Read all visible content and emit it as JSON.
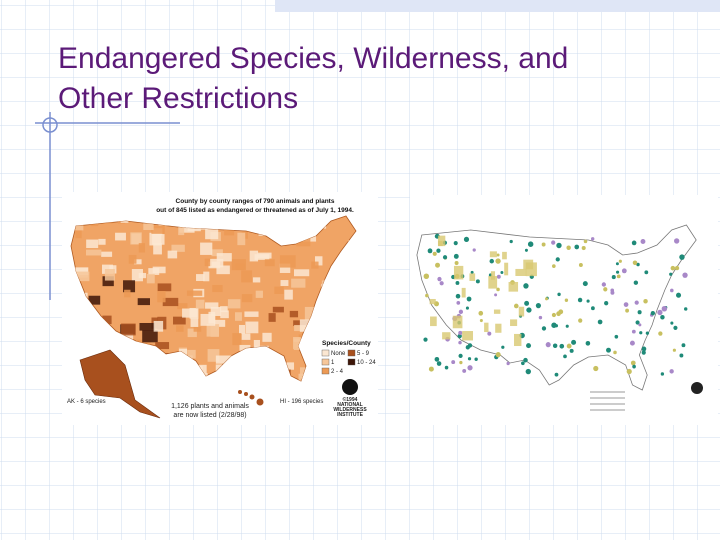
{
  "title": [
    "Endangered Species, Wilderness, and",
    "Other Restrictions"
  ],
  "left_map": {
    "heading": [
      "County by county ranges of 790 animals and plants",
      "out of 845 listed as endangered or threatened as of July 1, 1994."
    ],
    "legend_title": "Species/County",
    "legend": [
      {
        "label": "None",
        "color": "#fbe7d2"
      },
      {
        "label": "1",
        "color": "#f6c79a"
      },
      {
        "label": "2 - 4",
        "color": "#ec9a55"
      },
      {
        "label": "5 - 9",
        "color": "#a8501e"
      },
      {
        "label": "10 - 24",
        "color": "#3e1608"
      }
    ],
    "alaska_note": "AK - 6 species",
    "hawaii_note": "HI - 196 species",
    "footer": [
      "1,126 plants and animals",
      "are now listed (2/28/98)"
    ],
    "credit": [
      "©1994",
      "NATIONAL",
      "WILDERNESS",
      "INSTITUTE"
    ]
  }
}
